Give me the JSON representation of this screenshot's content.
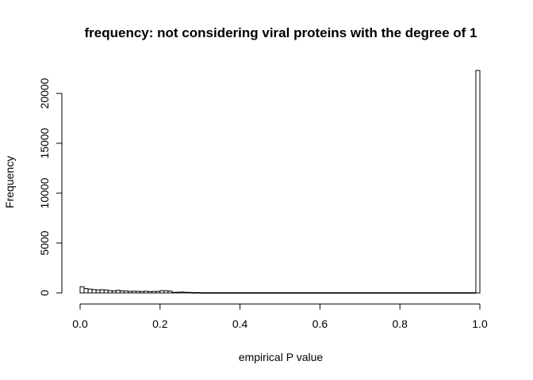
{
  "chart_data": {
    "type": "bar",
    "title": "frequency: not considering viral proteins with the degree of 1",
    "xlabel": "empirical P value",
    "ylabel": "Frequency",
    "xlim": [
      0,
      1
    ],
    "ylim": [
      0,
      22300
    ],
    "xticks": [
      0.0,
      0.2,
      0.4,
      0.6,
      0.8,
      1.0
    ],
    "xtick_labels": [
      "0.0",
      "0.2",
      "0.4",
      "0.6",
      "0.8",
      "1.0"
    ],
    "yticks": [
      0,
      5000,
      10000,
      15000,
      20000
    ],
    "ytick_labels": [
      "0",
      "5000",
      "10000",
      "15000",
      "20000"
    ],
    "grid": false,
    "bin_width": 0.01,
    "bin_start": 0.0,
    "values": [
      620,
      430,
      380,
      330,
      300,
      320,
      300,
      230,
      200,
      260,
      200,
      190,
      150,
      170,
      160,
      140,
      170,
      130,
      150,
      150,
      230,
      220,
      180,
      60,
      70,
      90,
      60,
      50,
      30,
      40,
      20,
      20,
      20,
      20,
      20,
      20,
      20,
      20,
      20,
      20,
      20,
      20,
      20,
      20,
      20,
      20,
      20,
      20,
      20,
      20,
      20,
      20,
      20,
      20,
      20,
      20,
      20,
      20,
      20,
      20,
      20,
      20,
      20,
      20,
      20,
      20,
      20,
      20,
      20,
      20,
      20,
      20,
      20,
      20,
      20,
      20,
      20,
      20,
      20,
      20,
      20,
      20,
      20,
      20,
      20,
      20,
      20,
      20,
      20,
      20,
      20,
      20,
      20,
      20,
      20,
      20,
      20,
      20,
      20,
      22300
    ]
  }
}
